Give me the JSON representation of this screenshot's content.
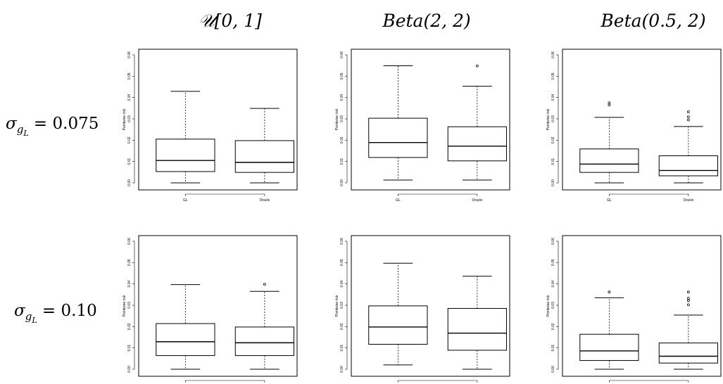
{
  "column_titles": [
    "𝒰[0, 1]",
    "Beta(2, 2)",
    "Beta(0.5, 2)"
  ],
  "row_labels": [
    {
      "sigma": "σ",
      "sub": "g",
      "subsub": "L",
      "rest": " = 0.075"
    },
    {
      "sigma": "σ",
      "sub": "g",
      "subsub": "L",
      "rest": " = 0.10"
    }
  ],
  "chart_data": [
    {
      "type": "box",
      "row": 0,
      "col": 0,
      "ylabel": "Pointwise risk",
      "ylim": [
        0,
        0.06
      ],
      "yticks": [
        "0.00",
        "0.01",
        "0.02",
        "0.03",
        "0.04",
        "0.05",
        "0.06"
      ],
      "categories": [
        "GL",
        "Oracle"
      ],
      "boxes": [
        {
          "whisker_low": 0.0,
          "q1": 0.0053,
          "median": 0.0105,
          "q3": 0.0205,
          "whisker_high": 0.0429,
          "outliers": []
        },
        {
          "whisker_low": 0.0,
          "q1": 0.0049,
          "median": 0.0096,
          "q3": 0.0198,
          "whisker_high": 0.0349,
          "outliers": []
        }
      ]
    },
    {
      "type": "box",
      "row": 0,
      "col": 1,
      "ylabel": "Pointwise risk",
      "ylim": [
        0,
        0.06
      ],
      "yticks": [
        "0.00",
        "0.01",
        "0.02",
        "0.03",
        "0.04",
        "0.05",
        "0.06"
      ],
      "categories": [
        "GL",
        "Oracle"
      ],
      "boxes": [
        {
          "whisker_low": 0.0013,
          "q1": 0.0119,
          "median": 0.0189,
          "q3": 0.0303,
          "whisker_high": 0.0549,
          "outliers": []
        },
        {
          "whisker_low": 0.0013,
          "q1": 0.0103,
          "median": 0.0172,
          "q3": 0.0263,
          "whisker_high": 0.0453,
          "outliers": [
            0.0548
          ]
        }
      ]
    },
    {
      "type": "box",
      "row": 0,
      "col": 2,
      "ylabel": "Pointwise risk",
      "ylim": [
        0,
        0.06
      ],
      "yticks": [
        "0.00",
        "0.01",
        "0.02",
        "0.03",
        "0.04",
        "0.05",
        "0.06"
      ],
      "categories": [
        "GL",
        "Oracle"
      ],
      "boxes": [
        {
          "whisker_low": 0.0,
          "q1": 0.0049,
          "median": 0.0088,
          "q3": 0.0159,
          "whisker_high": 0.0307,
          "outliers": [
            0.0365,
            0.0375
          ]
        },
        {
          "whisker_low": 0.0,
          "q1": 0.0033,
          "median": 0.0058,
          "q3": 0.0127,
          "whisker_high": 0.0264,
          "outliers": [
            0.0295,
            0.0309,
            0.0333
          ]
        }
      ]
    },
    {
      "type": "box",
      "row": 1,
      "col": 0,
      "ylabel": "Pointwise risk",
      "ylim": [
        0,
        0.06
      ],
      "yticks": [
        "0.00",
        "0.01",
        "0.02",
        "0.03",
        "0.04",
        "0.05",
        "0.06"
      ],
      "categories": [
        "GL",
        "Oracle"
      ],
      "boxes": [
        {
          "whisker_low": 0.0,
          "q1": 0.0064,
          "median": 0.0129,
          "q3": 0.0214,
          "whisker_high": 0.0397,
          "outliers": []
        },
        {
          "whisker_low": 0.0,
          "q1": 0.0064,
          "median": 0.0124,
          "q3": 0.0198,
          "whisker_high": 0.0365,
          "outliers": [
            0.0398
          ]
        }
      ]
    },
    {
      "type": "box",
      "row": 1,
      "col": 1,
      "ylabel": "Pointwise risk",
      "ylim": [
        0,
        0.06
      ],
      "yticks": [
        "0.00",
        "0.01",
        "0.02",
        "0.03",
        "0.04",
        "0.05",
        "0.06"
      ],
      "categories": [
        "GL",
        "Oracle"
      ],
      "boxes": [
        {
          "whisker_low": 0.002,
          "q1": 0.0117,
          "median": 0.0198,
          "q3": 0.0297,
          "whisker_high": 0.0497,
          "outliers": []
        },
        {
          "whisker_low": 0.0,
          "q1": 0.0089,
          "median": 0.0169,
          "q3": 0.0285,
          "whisker_high": 0.0436,
          "outliers": []
        }
      ]
    },
    {
      "type": "box",
      "row": 1,
      "col": 2,
      "ylabel": "Pointwise risk",
      "ylim": [
        0,
        0.06
      ],
      "yticks": [
        "0.00",
        "0.01",
        "0.02",
        "0.03",
        "0.04",
        "0.05",
        "0.06"
      ],
      "categories": [
        "GL",
        "Oracle"
      ],
      "boxes": [
        {
          "whisker_low": 0.0,
          "q1": 0.0041,
          "median": 0.0086,
          "q3": 0.0164,
          "whisker_high": 0.0335,
          "outliers": [
            0.0362
          ]
        },
        {
          "whisker_low": 0.0,
          "q1": 0.0029,
          "median": 0.0061,
          "q3": 0.0123,
          "whisker_high": 0.0254,
          "outliers": [
            0.0302,
            0.0322,
            0.0333,
            0.0362
          ]
        }
      ]
    }
  ]
}
